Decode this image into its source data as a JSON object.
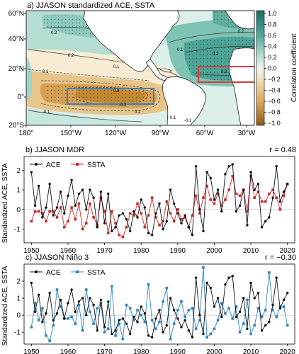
{
  "panel_a": {
    "title": "a) JJASON standardized ACE, SSTA",
    "lat_labels": [
      "60°N",
      "40°N",
      "20°N",
      "0°",
      "20°S"
    ],
    "lon_labels": [
      "180°",
      "150°W",
      "120°W",
      "90°W",
      "60°W",
      "30°W"
    ],
    "colorbar_label": "Correlation coefficient",
    "colorbar_ticks": [
      "1.0",
      "0.8",
      "0.6",
      "0.4",
      "0.2",
      "0.0",
      "−0.2",
      "−0.4",
      "−0.6",
      "−0.8",
      "−1.0"
    ],
    "contour_labels": [
      "0.2",
      "0.2",
      "0.1",
      "0.1",
      "0.3",
      "-0.2",
      "0.2",
      "-0.1",
      "0.1",
      "-0.1",
      "0.2",
      "0.1",
      "0.3",
      "0.2"
    ],
    "boxes": [
      {
        "name": "Niño 3",
        "color": "#3b82c4"
      },
      {
        "name": "MDR",
        "color": "#d23c3c"
      }
    ],
    "colors": {
      "positive": "#2b8c7e",
      "negative": "#c98a2e"
    }
  },
  "chart_data": [
    {
      "type": "line",
      "title": "b) JJASON MDR",
      "annotation": "r = 0.48",
      "ylabel": "Standardized ACE, SSTA",
      "x": [
        1950,
        1951,
        1952,
        1953,
        1954,
        1955,
        1956,
        1957,
        1958,
        1959,
        1960,
        1961,
        1962,
        1963,
        1964,
        1965,
        1966,
        1967,
        1968,
        1969,
        1970,
        1971,
        1972,
        1973,
        1974,
        1975,
        1976,
        1977,
        1978,
        1979,
        1980,
        1981,
        1982,
        1983,
        1984,
        1985,
        1986,
        1987,
        1988,
        1989,
        1990,
        1991,
        1992,
        1993,
        1994,
        1995,
        1996,
        1997,
        1998,
        1999,
        2000,
        2001,
        2002,
        2003,
        2004,
        2005,
        2006,
        2007,
        2008,
        2009,
        2010,
        2011,
        2012,
        2013,
        2014,
        2015,
        2016,
        2017,
        2018,
        2019,
        2020
      ],
      "xticks": [
        1950,
        1960,
        1970,
        1980,
        1990,
        2000,
        2010,
        2020
      ],
      "yticks": [
        -1,
        0,
        1,
        2
      ],
      "ylim": [
        -1.7,
        2.7
      ],
      "series": [
        {
          "name": "ACE",
          "color": "#111111",
          "values": [
            1.9,
            0.2,
            1.2,
            -0.4,
            0.1,
            1.3,
            -0.3,
            0.1,
            0.9,
            -0.2,
            0.7,
            1.5,
            0.2,
            0.8,
            1.0,
            0.0,
            1.0,
            0.6,
            -0.9,
            0.9,
            -0.7,
            0.8,
            -1.1,
            -0.9,
            -0.3,
            -0.2,
            -0.5,
            -1.1,
            -0.1,
            -0.4,
            0.5,
            0.1,
            -1.2,
            -1.3,
            -0.2,
            0.3,
            -1.0,
            -0.6,
            1.0,
            0.3,
            -0.2,
            -0.7,
            -0.3,
            -0.9,
            -1.3,
            2.2,
            0.0,
            -1.1,
            1.9,
            1.6,
            0.5,
            1.0,
            -0.1,
            1.8,
            2.2,
            2.3,
            -0.1,
            0.2,
            1.0,
            -0.8,
            1.9,
            1.0,
            1.3,
            -0.9,
            -0.6,
            -0.4,
            0.6,
            2.2,
            0.4,
            0.9,
            1.3
          ]
        },
        {
          "name": "SSTA",
          "color": "#cc2b2b",
          "values": [
            -0.6,
            -0.1,
            -0.1,
            -0.2,
            -0.6,
            -0.1,
            -0.1,
            -0.4,
            0.1,
            -0.9,
            -0.6,
            0.1,
            -0.5,
            0.3,
            -1.0,
            -0.7,
            0.3,
            -0.4,
            -0.8,
            0.6,
            -0.1,
            -1.2,
            -0.1,
            -0.7,
            -1.3,
            -1.4,
            -0.9,
            -0.2,
            -0.3,
            0.3,
            -0.2,
            -0.9,
            -0.3,
            0.6,
            -0.4,
            -0.8,
            -0.6,
            0.4,
            -0.2,
            -0.6,
            0.0,
            -0.5,
            -0.4,
            -0.9,
            -0.3,
            0.7,
            -0.2,
            0.6,
            1.2,
            0.5,
            0.3,
            0.8,
            0.2,
            0.5,
            1.0,
            1.7,
            0.8,
            0.7,
            1.0,
            -0.1,
            1.7,
            0.6,
            0.9,
            0.4,
            0.4,
            0.8,
            1.0,
            0.6,
            0.0,
            0.7,
            1.3
          ]
        }
      ]
    },
    {
      "type": "line",
      "title": "c) JJASON Niño 3",
      "annotation": "r = −0.30",
      "ylabel": "Standardized ACE, SSTA",
      "x": [
        1950,
        1951,
        1952,
        1953,
        1954,
        1955,
        1956,
        1957,
        1958,
        1959,
        1960,
        1961,
        1962,
        1963,
        1964,
        1965,
        1966,
        1967,
        1968,
        1969,
        1970,
        1971,
        1972,
        1973,
        1974,
        1975,
        1976,
        1977,
        1978,
        1979,
        1980,
        1981,
        1982,
        1983,
        1984,
        1985,
        1986,
        1987,
        1988,
        1989,
        1990,
        1991,
        1992,
        1993,
        1994,
        1995,
        1996,
        1997,
        1998,
        1999,
        2000,
        2001,
        2002,
        2003,
        2004,
        2005,
        2006,
        2007,
        2008,
        2009,
        2010,
        2011,
        2012,
        2013,
        2014,
        2015,
        2016,
        2017,
        2018,
        2019,
        2020
      ],
      "xticks": [
        1950,
        1960,
        1970,
        1980,
        1990,
        2000,
        2010,
        2020
      ],
      "yticks": [
        -1,
        0,
        1,
        2
      ],
      "ylim": [
        -1.7,
        3.0
      ],
      "series": [
        {
          "name": "ACE",
          "color": "#111111",
          "values": [
            1.9,
            0.2,
            1.2,
            -0.4,
            0.1,
            1.3,
            -0.3,
            0.1,
            0.9,
            -0.2,
            0.7,
            1.5,
            0.2,
            0.8,
            1.0,
            0.0,
            1.0,
            0.6,
            -0.9,
            0.9,
            -0.7,
            0.8,
            -1.1,
            -0.9,
            -0.3,
            -0.2,
            -0.5,
            -1.1,
            -0.1,
            -0.4,
            0.5,
            0.1,
            -1.2,
            -1.3,
            -0.2,
            0.3,
            -1.0,
            -0.6,
            1.0,
            0.3,
            -0.2,
            -0.7,
            -0.3,
            -0.9,
            -1.3,
            2.2,
            0.0,
            -1.1,
            1.9,
            1.6,
            0.5,
            1.0,
            -0.1,
            1.8,
            2.2,
            2.3,
            -0.1,
            0.2,
            1.0,
            -0.8,
            1.9,
            1.0,
            1.3,
            -0.9,
            -0.6,
            -0.4,
            0.6,
            2.2,
            0.4,
            0.9,
            1.3
          ]
        },
        {
          "name": "SSTA",
          "color": "#2f86c0",
          "values": [
            -0.7,
            0.7,
            -0.3,
            0.4,
            -1.2,
            -1.5,
            -0.6,
            1.5,
            0.5,
            -0.2,
            -0.2,
            -0.1,
            -0.5,
            0.6,
            -0.9,
            1.5,
            0.2,
            -0.5,
            0.4,
            0.7,
            -1.0,
            -0.8,
            1.7,
            -1.2,
            -0.5,
            -1.4,
            0.6,
            0.4,
            -0.3,
            0.3,
            0.0,
            -0.4,
            1.8,
            -0.3,
            -0.8,
            -0.4,
            0.8,
            1.6,
            -1.4,
            -0.5,
            0.3,
            0.8,
            -0.1,
            0.3,
            0.4,
            -0.8,
            -0.3,
            2.8,
            -1.3,
            -1.1,
            -0.8,
            -0.3,
            0.7,
            0.1,
            0.4,
            -0.2,
            0.5,
            -1.0,
            -0.5,
            0.9,
            -1.1,
            -0.6,
            0.4,
            -0.1,
            0.3,
            2.5,
            0.3,
            -0.1,
            0.5,
            0.5,
            -0.6
          ]
        }
      ]
    }
  ]
}
